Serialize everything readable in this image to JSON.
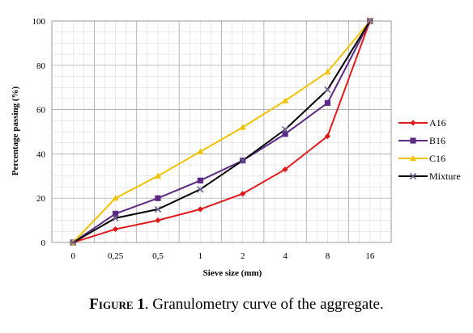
{
  "chart_data": {
    "type": "line",
    "categories": [
      "0",
      "0,25",
      "0,5",
      "1",
      "2",
      "4",
      "8",
      "16"
    ],
    "xlabel": "Sieve size (mm)",
    "ylabel": "Percentage passing (%)",
    "ylim": [
      0,
      100
    ],
    "yticks": [
      0,
      20,
      40,
      60,
      80,
      100
    ],
    "grid": true,
    "legend_position": "right",
    "series": [
      {
        "name": "A16",
        "color": "#e31a1c",
        "marker": "diamond",
        "values": [
          0,
          6,
          10,
          15,
          22,
          33,
          48,
          100
        ]
      },
      {
        "name": "B16",
        "color": "#5b2a86",
        "marker": "square",
        "values": [
          0,
          13,
          20,
          28,
          37,
          49,
          63,
          100
        ]
      },
      {
        "name": "C16",
        "color": "#f2c200",
        "marker": "triangle",
        "values": [
          0,
          20,
          30,
          41,
          52,
          64,
          77,
          100
        ]
      },
      {
        "name": "Mixture",
        "color": "#000000",
        "marker": "x",
        "values": [
          0,
          11,
          15,
          24,
          37,
          51,
          69,
          100
        ]
      }
    ]
  },
  "caption": {
    "prefix": "Figure 1",
    "text": ". Granulometry curve of the aggregate."
  }
}
